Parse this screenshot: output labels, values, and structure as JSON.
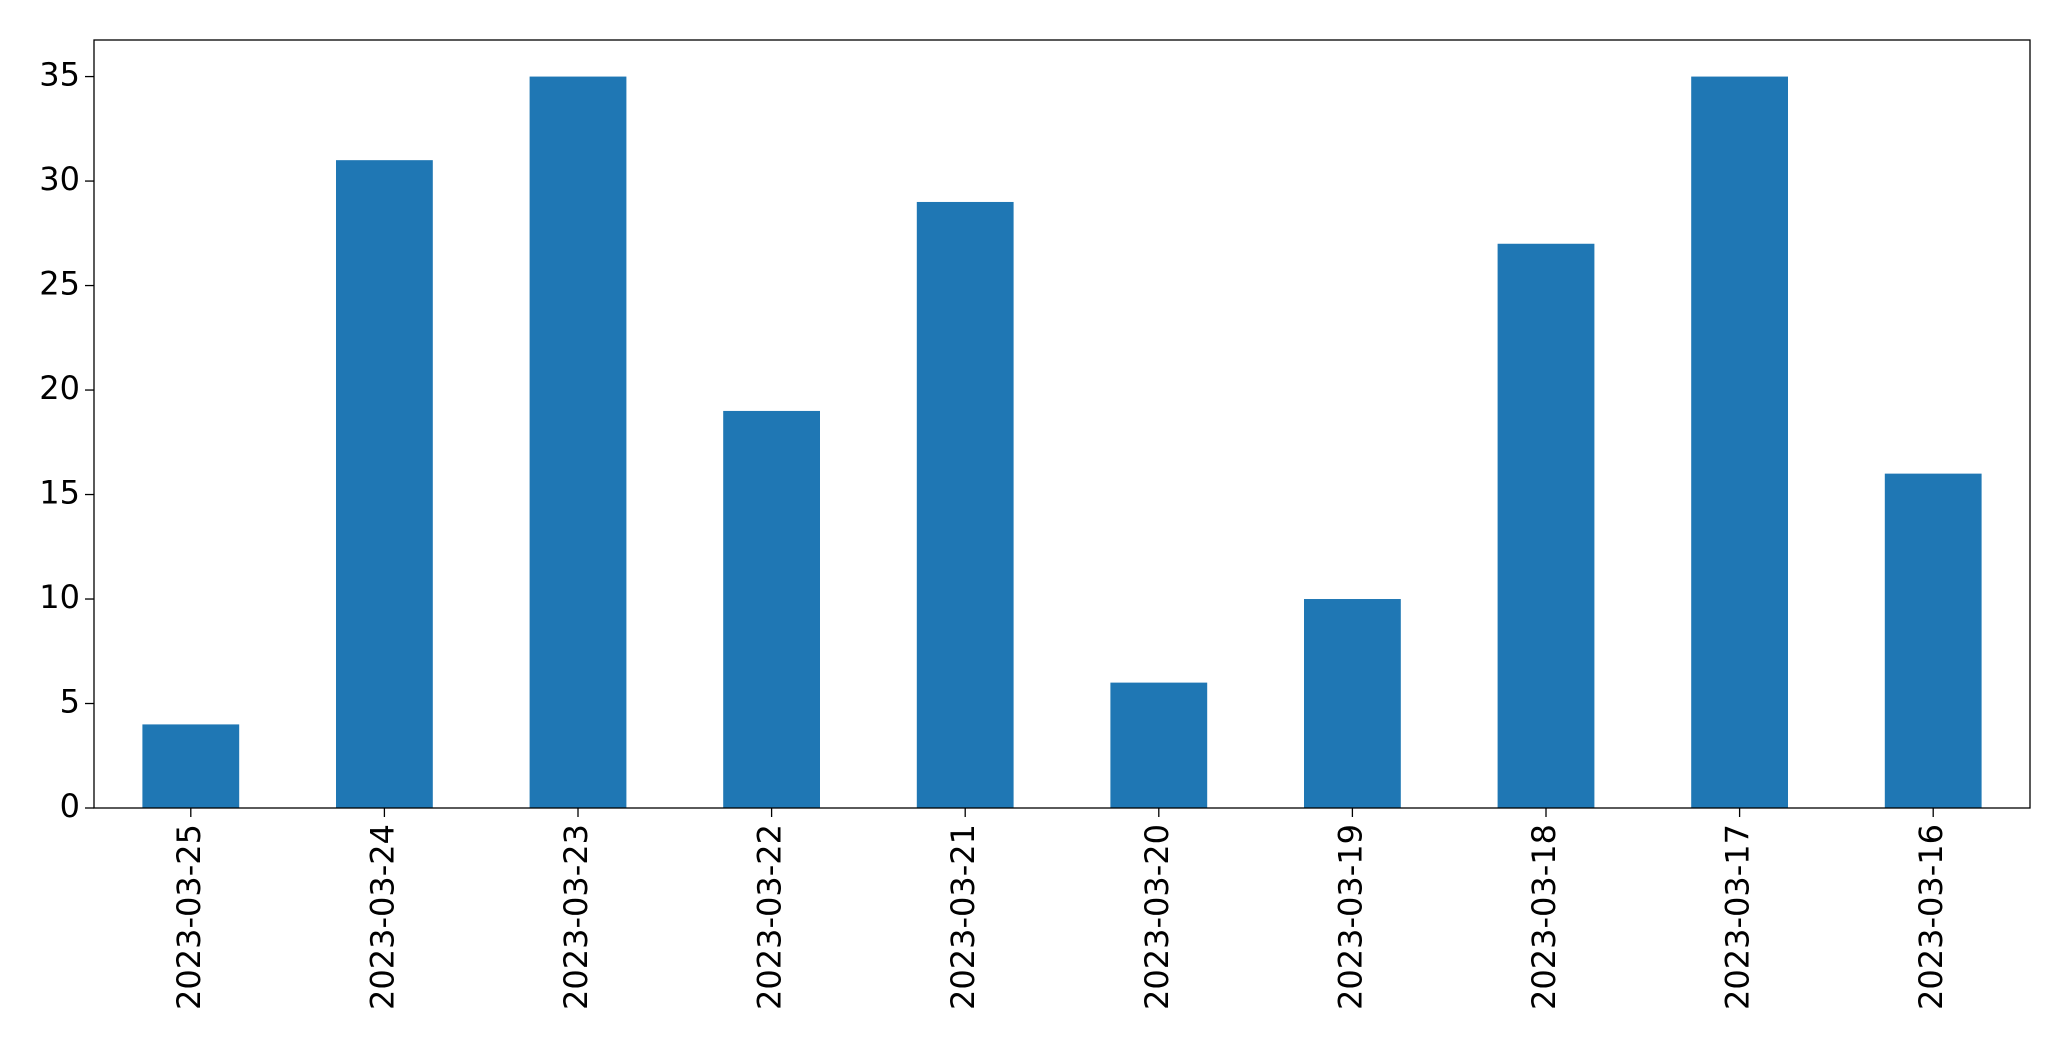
{
  "chart_data": {
    "type": "bar",
    "categories": [
      "2023-03-25",
      "2023-03-24",
      "2023-03-23",
      "2023-03-22",
      "2023-03-21",
      "2023-03-20",
      "2023-03-19",
      "2023-03-18",
      "2023-03-17",
      "2023-03-16"
    ],
    "values": [
      4,
      31,
      35,
      19,
      29,
      6,
      10,
      27,
      35,
      16
    ],
    "color": "#1f77b4",
    "ylim": [
      0,
      36.75
    ],
    "yticks": [
      0,
      5,
      10,
      15,
      20,
      25,
      30,
      35
    ],
    "grid": false
  }
}
